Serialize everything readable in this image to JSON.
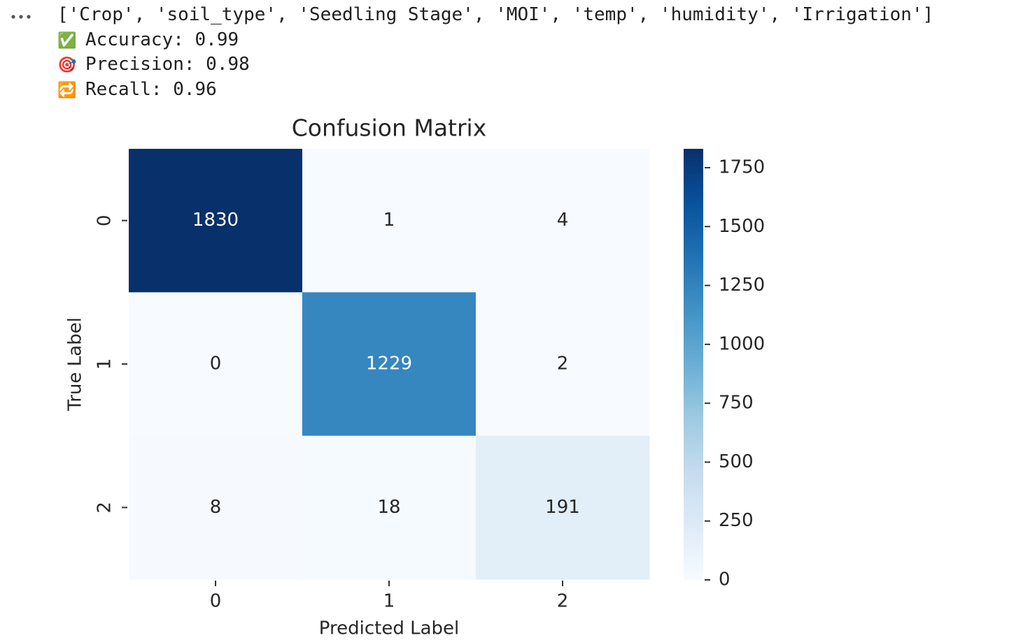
{
  "output": {
    "columns": "['Crop', 'soil_type', 'Seedling Stage', 'MOI', 'temp', 'humidity', 'Irrigation']",
    "metrics": [
      {
        "icon": "✅",
        "text": "Accuracy: 0.99"
      },
      {
        "icon": "🎯",
        "text": "Precision: 0.98"
      },
      {
        "icon": "🔁",
        "text": "Recall: 0.96"
      }
    ]
  },
  "chart_data": {
    "type": "heatmap",
    "title": "Confusion Matrix",
    "xlabel": "Predicted Label",
    "ylabel": "True Label",
    "x_categories": [
      "0",
      "1",
      "2"
    ],
    "y_categories": [
      "0",
      "1",
      "2"
    ],
    "values": [
      [
        1830,
        1,
        4
      ],
      [
        0,
        1229,
        2
      ],
      [
        8,
        18,
        191
      ]
    ],
    "clim": [
      0,
      1830
    ],
    "cticks": [
      0,
      250,
      500,
      750,
      1000,
      1250,
      1500,
      1750
    ],
    "colormap": [
      "#f7fbff",
      "#deebf7",
      "#c6dbef",
      "#9ecae1",
      "#6baed6",
      "#4292c6",
      "#2171b5",
      "#08519c",
      "#08306b"
    ]
  }
}
